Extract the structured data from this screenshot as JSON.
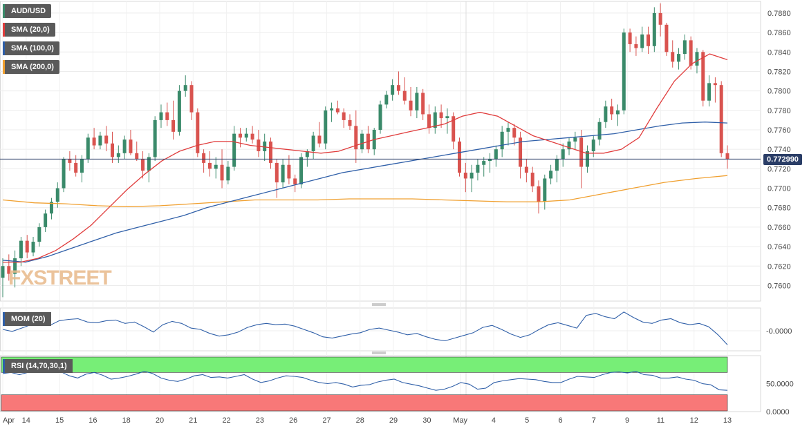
{
  "chart_data": {
    "type": "candlestick",
    "symbol": "AUD/USD",
    "legend": [
      {
        "label": "AUD/USD",
        "color": "#3a8a6a"
      },
      {
        "label": "SMA (20,0)",
        "color": "#e03c3c"
      },
      {
        "label": "SMA (100,0)",
        "color": "#2f5fa8"
      },
      {
        "label": "SMA (200,0)",
        "color": "#f0a030"
      }
    ],
    "last_price": "0.772990",
    "price_axis": {
      "ylim": [
        0.7584,
        0.7892
      ],
      "ticks": [
        "0.7600",
        "0.7620",
        "0.7640",
        "0.7660",
        "0.7680",
        "0.7700",
        "0.7720",
        "0.7740",
        "0.7760",
        "0.7780",
        "0.7800",
        "0.7820",
        "0.7840",
        "0.7860",
        "0.7880"
      ]
    },
    "x_axis": {
      "labels": [
        "Apr",
        "14",
        "15",
        "16",
        "18",
        "20",
        "21",
        "22",
        "23",
        "26",
        "27",
        "28",
        "29",
        "30",
        "May",
        "4",
        "5",
        "6",
        "7",
        "9",
        "11",
        "12",
        "13"
      ],
      "label_index": [
        0,
        7,
        17,
        27,
        37,
        47,
        57,
        67,
        77,
        87,
        97,
        107,
        117,
        127,
        137,
        147,
        157,
        167,
        177,
        187,
        197,
        207,
        217
      ]
    },
    "candles_ohlc": [
      [
        0.7608,
        0.7628,
        0.7588,
        0.762
      ],
      [
        0.762,
        0.7632,
        0.7605,
        0.7612
      ],
      [
        0.7612,
        0.7636,
        0.7598,
        0.7628
      ],
      [
        0.7628,
        0.765,
        0.762,
        0.7646
      ],
      [
        0.7646,
        0.7652,
        0.7628,
        0.7634
      ],
      [
        0.7634,
        0.765,
        0.763,
        0.7645
      ],
      [
        0.7645,
        0.7664,
        0.764,
        0.766
      ],
      [
        0.766,
        0.7678,
        0.7655,
        0.7674
      ],
      [
        0.7674,
        0.769,
        0.7668,
        0.7686
      ],
      [
        0.7686,
        0.7706,
        0.768,
        0.77
      ],
      [
        0.77,
        0.7732,
        0.7696,
        0.773
      ],
      [
        0.773,
        0.7738,
        0.7718,
        0.7726
      ],
      [
        0.7726,
        0.7734,
        0.7712,
        0.7716
      ],
      [
        0.7716,
        0.7734,
        0.7706,
        0.773
      ],
      [
        0.773,
        0.7756,
        0.7726,
        0.7752
      ],
      [
        0.7752,
        0.7762,
        0.774,
        0.7744
      ],
      [
        0.7744,
        0.7758,
        0.774,
        0.7754
      ],
      [
        0.7754,
        0.7764,
        0.7738,
        0.7746
      ],
      [
        0.7746,
        0.7758,
        0.7726,
        0.7732
      ],
      [
        0.7732,
        0.7744,
        0.7726,
        0.7736
      ],
      [
        0.7736,
        0.7754,
        0.773,
        0.775
      ],
      [
        0.775,
        0.776,
        0.7734,
        0.7736
      ],
      [
        0.7736,
        0.7748,
        0.7728,
        0.773
      ],
      [
        0.773,
        0.7738,
        0.771,
        0.7718
      ],
      [
        0.7718,
        0.7736,
        0.7706,
        0.7732
      ],
      [
        0.7732,
        0.7774,
        0.7728,
        0.777
      ],
      [
        0.777,
        0.7786,
        0.7762,
        0.7778
      ],
      [
        0.7778,
        0.7788,
        0.7764,
        0.777
      ],
      [
        0.777,
        0.779,
        0.775,
        0.7758
      ],
      [
        0.7758,
        0.7806,
        0.7754,
        0.78
      ],
      [
        0.78,
        0.7816,
        0.7794,
        0.7806
      ],
      [
        0.7806,
        0.781,
        0.777,
        0.7778
      ],
      [
        0.7778,
        0.7782,
        0.7732,
        0.7736
      ],
      [
        0.7736,
        0.774,
        0.7716,
        0.7726
      ],
      [
        0.7726,
        0.7738,
        0.7712,
        0.772
      ],
      [
        0.772,
        0.7732,
        0.771,
        0.7724
      ],
      [
        0.7724,
        0.774,
        0.77,
        0.7708
      ],
      [
        0.7708,
        0.7728,
        0.7704,
        0.7722
      ],
      [
        0.7722,
        0.7764,
        0.7718,
        0.7756
      ],
      [
        0.7756,
        0.7762,
        0.7742,
        0.7752
      ],
      [
        0.7752,
        0.7762,
        0.7748,
        0.7756
      ],
      [
        0.7756,
        0.7764,
        0.7746,
        0.775
      ],
      [
        0.775,
        0.776,
        0.7732,
        0.7738
      ],
      [
        0.7738,
        0.7756,
        0.7728,
        0.7748
      ],
      [
        0.7748,
        0.7752,
        0.772,
        0.7726
      ],
      [
        0.7726,
        0.773,
        0.769,
        0.7706
      ],
      [
        0.7706,
        0.773,
        0.77,
        0.7724
      ],
      [
        0.7724,
        0.7734,
        0.7704,
        0.771
      ],
      [
        0.771,
        0.7714,
        0.7696,
        0.7704
      ],
      [
        0.7704,
        0.7736,
        0.77,
        0.7732
      ],
      [
        0.7732,
        0.774,
        0.7722,
        0.7738
      ],
      [
        0.7738,
        0.7758,
        0.773,
        0.7754
      ],
      [
        0.7754,
        0.7768,
        0.7742,
        0.7746
      ],
      [
        0.7746,
        0.7784,
        0.774,
        0.778
      ],
      [
        0.778,
        0.7788,
        0.7768,
        0.7782
      ],
      [
        0.7782,
        0.779,
        0.7776,
        0.7778
      ],
      [
        0.7778,
        0.7782,
        0.7762,
        0.777
      ],
      [
        0.777,
        0.7776,
        0.776,
        0.7764
      ],
      [
        0.7764,
        0.778,
        0.7726,
        0.774
      ],
      [
        0.774,
        0.776,
        0.7736,
        0.7756
      ],
      [
        0.7756,
        0.7764,
        0.7736,
        0.774
      ],
      [
        0.774,
        0.7762,
        0.7734,
        0.776
      ],
      [
        0.776,
        0.779,
        0.7756,
        0.7786
      ],
      [
        0.7786,
        0.78,
        0.7782,
        0.7796
      ],
      [
        0.7796,
        0.7812,
        0.779,
        0.7806
      ],
      [
        0.7806,
        0.782,
        0.7796,
        0.78
      ],
      [
        0.78,
        0.7814,
        0.7786,
        0.779
      ],
      [
        0.779,
        0.7804,
        0.7774,
        0.778
      ],
      [
        0.778,
        0.7804,
        0.7772,
        0.7798
      ],
      [
        0.7798,
        0.7802,
        0.777,
        0.7776
      ],
      [
        0.7776,
        0.7786,
        0.7756,
        0.7762
      ],
      [
        0.7762,
        0.7784,
        0.7756,
        0.7778
      ],
      [
        0.7778,
        0.7786,
        0.7762,
        0.7772
      ],
      [
        0.7772,
        0.7782,
        0.7756,
        0.7774
      ],
      [
        0.7774,
        0.7778,
        0.774,
        0.7748
      ],
      [
        0.7748,
        0.7752,
        0.7712,
        0.7716
      ],
      [
        0.7716,
        0.7726,
        0.7696,
        0.771
      ],
      [
        0.771,
        0.7724,
        0.7696,
        0.7716
      ],
      [
        0.7716,
        0.773,
        0.7708,
        0.7724
      ],
      [
        0.7724,
        0.7732,
        0.7712,
        0.7728
      ],
      [
        0.7728,
        0.7736,
        0.7716,
        0.773
      ],
      [
        0.773,
        0.7744,
        0.7722,
        0.774
      ],
      [
        0.774,
        0.7764,
        0.7732,
        0.7758
      ],
      [
        0.7758,
        0.7768,
        0.7744,
        0.7762
      ],
      [
        0.7762,
        0.7766,
        0.7744,
        0.7752
      ],
      [
        0.7752,
        0.7758,
        0.771,
        0.7722
      ],
      [
        0.7722,
        0.773,
        0.7706,
        0.7716
      ],
      [
        0.7716,
        0.7722,
        0.7696,
        0.7702
      ],
      [
        0.7702,
        0.7708,
        0.7674,
        0.7686
      ],
      [
        0.7686,
        0.7714,
        0.7678,
        0.771
      ],
      [
        0.771,
        0.7724,
        0.7704,
        0.7718
      ],
      [
        0.7718,
        0.7734,
        0.7706,
        0.773
      ],
      [
        0.773,
        0.7746,
        0.7722,
        0.774
      ],
      [
        0.774,
        0.7752,
        0.7734,
        0.7748
      ],
      [
        0.7748,
        0.7758,
        0.774,
        0.7752
      ],
      [
        0.7752,
        0.776,
        0.77,
        0.7722
      ],
      [
        0.7722,
        0.7744,
        0.7716,
        0.7738
      ],
      [
        0.7738,
        0.7754,
        0.7732,
        0.775
      ],
      [
        0.775,
        0.7772,
        0.7744,
        0.7768
      ],
      [
        0.7768,
        0.779,
        0.7762,
        0.7784
      ],
      [
        0.7784,
        0.7792,
        0.777,
        0.7776
      ],
      [
        0.7776,
        0.7786,
        0.7764,
        0.778
      ],
      [
        0.778,
        0.7864,
        0.7776,
        0.786
      ],
      [
        0.786,
        0.7864,
        0.784,
        0.7848
      ],
      [
        0.7848,
        0.7856,
        0.7836,
        0.7844
      ],
      [
        0.7844,
        0.7866,
        0.784,
        0.7858
      ],
      [
        0.7858,
        0.7866,
        0.7838,
        0.7846
      ],
      [
        0.7846,
        0.7886,
        0.784,
        0.788
      ],
      [
        0.788,
        0.789,
        0.7856,
        0.7868
      ],
      [
        0.7868,
        0.787,
        0.7836,
        0.784
      ],
      [
        0.784,
        0.7852,
        0.7824,
        0.783
      ],
      [
        0.783,
        0.7844,
        0.7822,
        0.7838
      ],
      [
        0.7838,
        0.7858,
        0.7832,
        0.7852
      ],
      [
        0.7852,
        0.7856,
        0.7822,
        0.7826
      ],
      [
        0.7826,
        0.7844,
        0.7818,
        0.784
      ],
      [
        0.784,
        0.7842,
        0.7784,
        0.779
      ],
      [
        0.779,
        0.7816,
        0.7784,
        0.7808
      ],
      [
        0.7808,
        0.7814,
        0.7788,
        0.7806
      ],
      [
        0.7806,
        0.781,
        0.7732,
        0.7736
      ],
      [
        0.7736,
        0.7744,
        0.772,
        0.773
      ]
    ],
    "sma20": [
      0.7624,
      0.7624,
      0.7628,
      0.7636,
      0.7648,
      0.7662,
      0.768,
      0.7698,
      0.7714,
      0.7728,
      0.7738,
      0.7744,
      0.7748,
      0.7748,
      0.7744,
      0.7742,
      0.774,
      0.7738,
      0.7736,
      0.7738,
      0.7744,
      0.775,
      0.7754,
      0.7758,
      0.7762,
      0.7766,
      0.7774,
      0.7778,
      0.7774,
      0.7764,
      0.7754,
      0.7748,
      0.7742,
      0.7736,
      0.7736,
      0.774,
      0.7752,
      0.7782,
      0.781,
      0.7828,
      0.7838,
      0.7832
    ],
    "sma100": [
      0.7626,
      0.7624,
      0.763,
      0.7638,
      0.7646,
      0.7654,
      0.766,
      0.7666,
      0.7672,
      0.768,
      0.7686,
      0.7692,
      0.7698,
      0.7704,
      0.771,
      0.7716,
      0.772,
      0.7724,
      0.7728,
      0.7732,
      0.7736,
      0.774,
      0.7744,
      0.7748,
      0.775,
      0.7752,
      0.7754,
      0.7756,
      0.776,
      0.7764,
      0.7767,
      0.7768,
      0.7767
    ],
    "sma200": [
      0.7688,
      0.7685,
      0.7684,
      0.7682,
      0.7681,
      0.7682,
      0.7684,
      0.7686,
      0.7688,
      0.7688,
      0.7688,
      0.7689,
      0.7689,
      0.7689,
      0.7688,
      0.7687,
      0.7686,
      0.7686,
      0.7688,
      0.7694,
      0.77,
      0.7706,
      0.771,
      0.7713
    ]
  },
  "mom_panel": {
    "label": "MOM (20)",
    "tick": "-0.0000",
    "values": [
      0.2,
      -0.1,
      0.4,
      0.9,
      1.2,
      0.8,
      1.5,
      1.7,
      1.8,
      1.3,
      1.2,
      1.5,
      1.6,
      1.1,
      1.3,
      0.6,
      -0.2,
      0.9,
      1.4,
      1.1,
      0.4,
      0.2,
      -0.4,
      -0.8,
      -0.6,
      -0.2,
      0.5,
      0.9,
      1.1,
      0.9,
      1.0,
      0.7,
      0.2,
      -0.3,
      -0.9,
      -1.1,
      -0.8,
      -0.5,
      -0.3,
      0.2,
      0.4,
      0.1,
      -0.2,
      -0.6,
      -0.4,
      -0.9,
      -1.3,
      -1.5,
      -1.1,
      -0.7,
      -0.3,
      0.5,
      0.8,
      0.2,
      -0.5,
      -1.0,
      -0.6,
      0.2,
      0.9,
      1.2,
      0.8,
      0.4,
      2.3,
      2.6,
      2.1,
      1.8,
      2.8,
      2.0,
      1.3,
      1.1,
      1.6,
      1.8,
      1.2,
      0.9,
      1.1,
      0.6,
      -0.6,
      -2.1
    ]
  },
  "rsi_panel": {
    "label": "RSI (14,70,30,1)",
    "ticks": [
      "50.0000",
      "0.0000"
    ],
    "upper_zone_color": "#77ee77",
    "lower_zone_color": "#f87878",
    "values": [
      68,
      70,
      66,
      70,
      72,
      74,
      73,
      71,
      64,
      60,
      67,
      70,
      65,
      58,
      60,
      63,
      67,
      72,
      68,
      60,
      56,
      54,
      58,
      64,
      66,
      61,
      62,
      60,
      63,
      66,
      58,
      52,
      55,
      60,
      64,
      63,
      61,
      56,
      52,
      50,
      52,
      49,
      44,
      47,
      48,
      53,
      56,
      58,
      52,
      49,
      46,
      42,
      38,
      40,
      45,
      52,
      49,
      40,
      42,
      52,
      55,
      57,
      59,
      58,
      57,
      54,
      52,
      52,
      58,
      63,
      62,
      61,
      66,
      70,
      71,
      69,
      72,
      66,
      65,
      60,
      60,
      62,
      58,
      56,
      50,
      48,
      39,
      38
    ]
  }
}
